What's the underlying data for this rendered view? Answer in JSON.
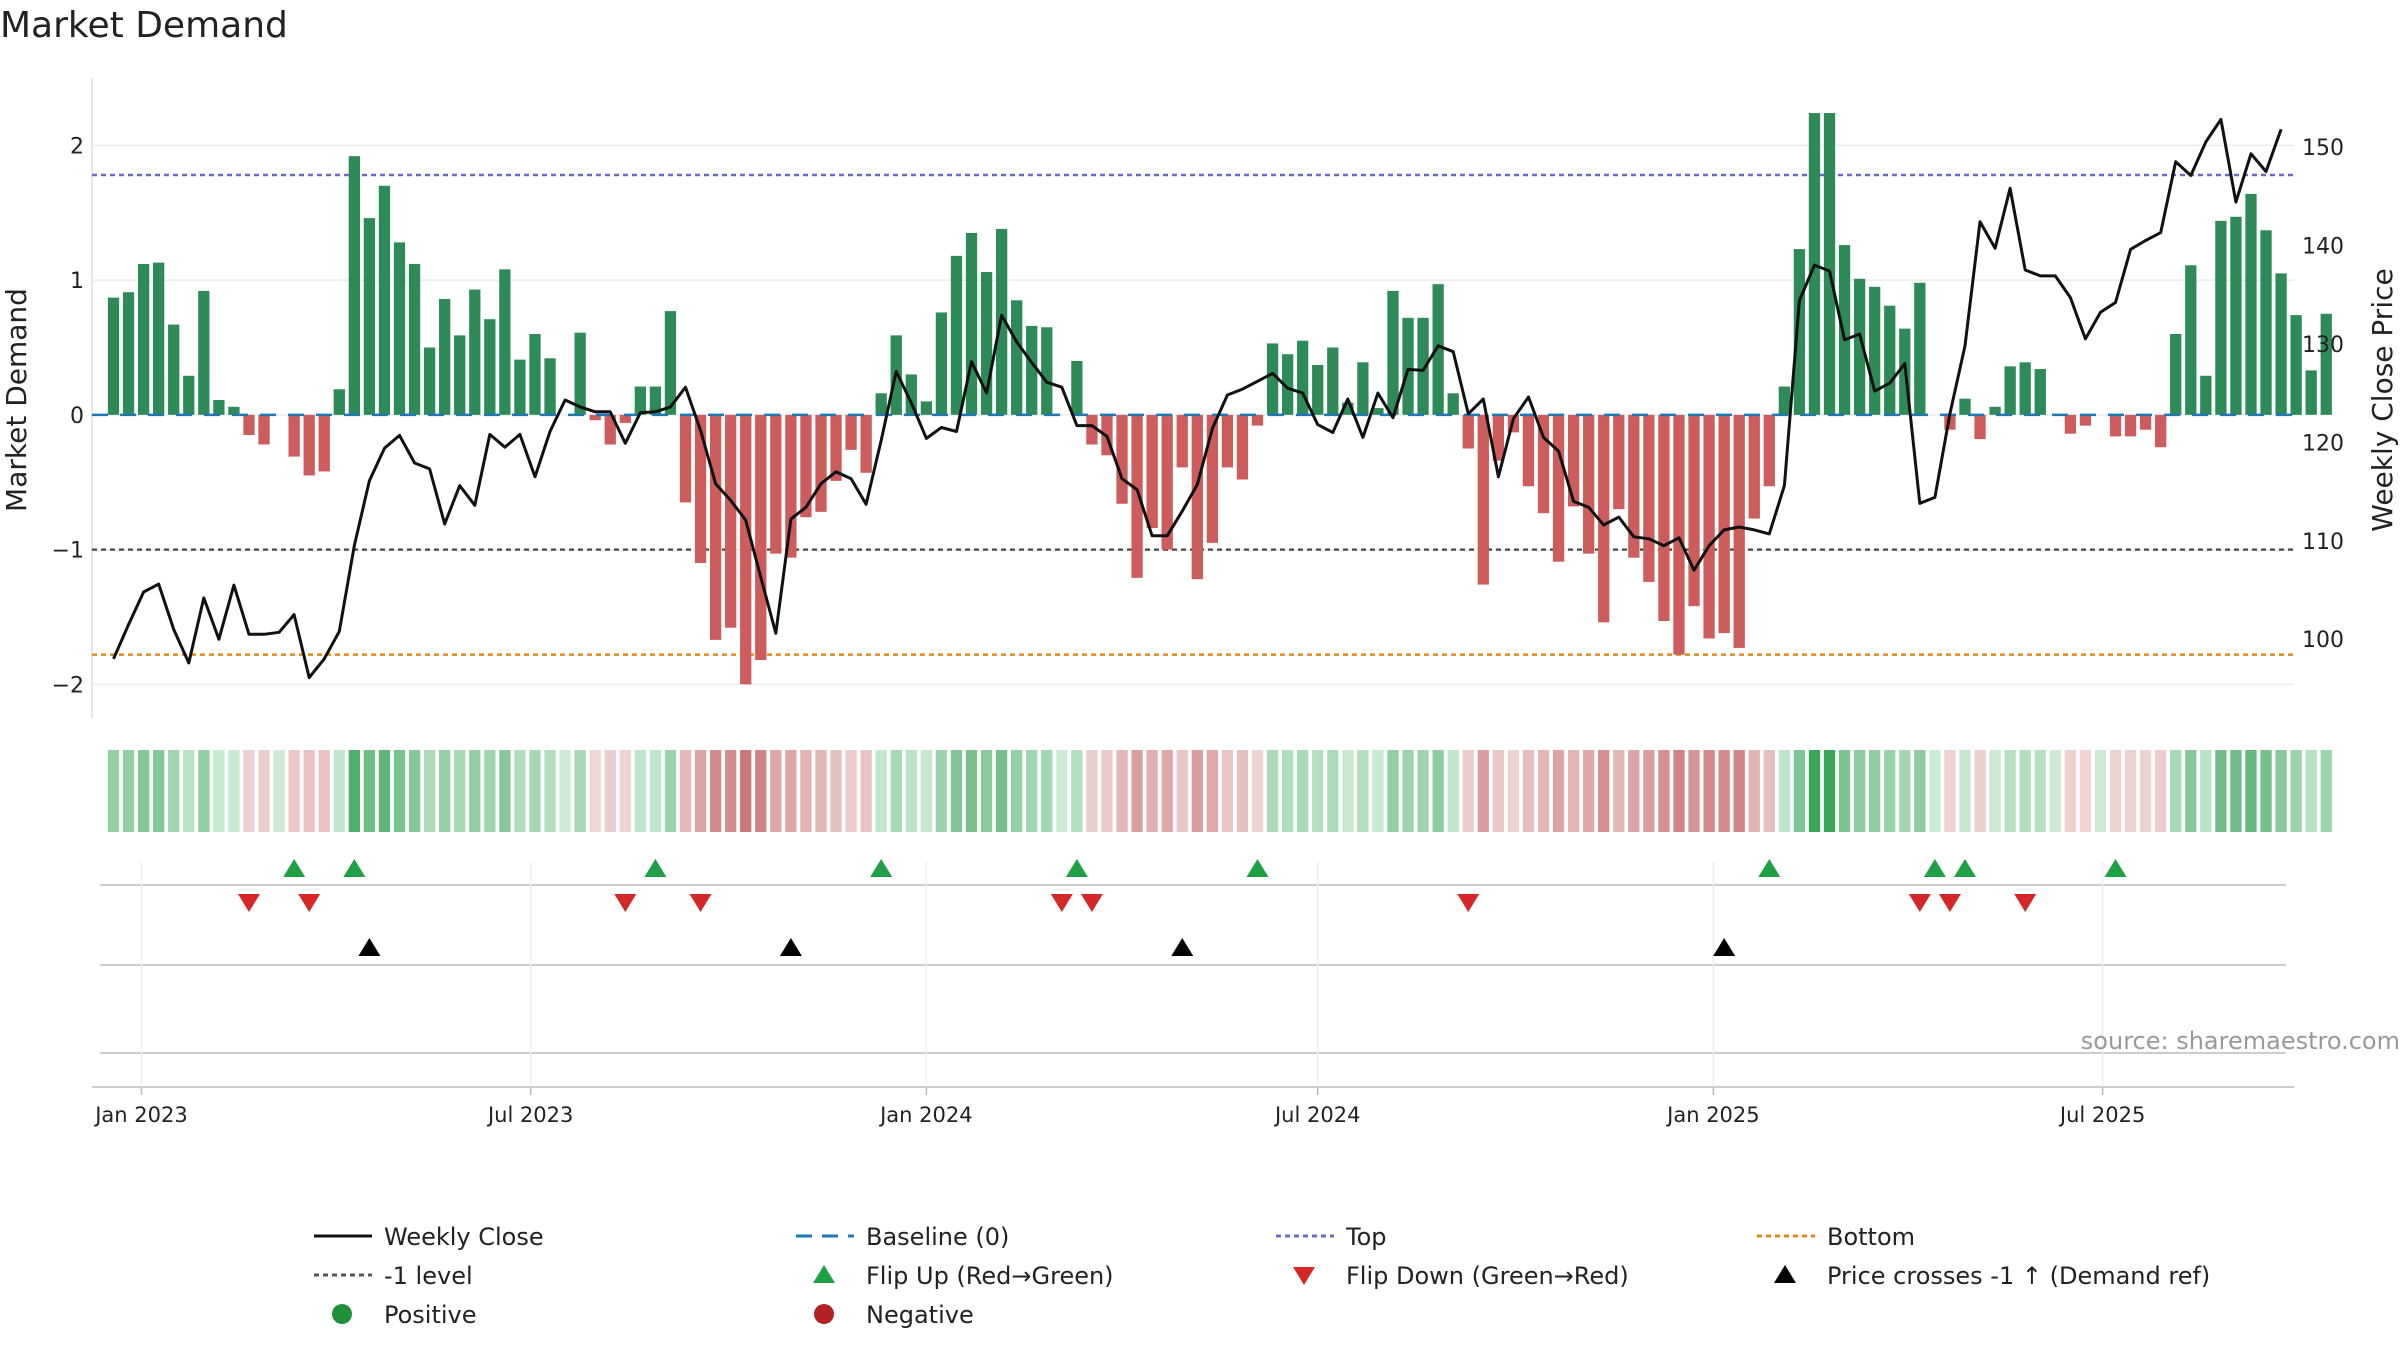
{
  "title": "Market Demand",
  "source_label": "source: sharemaestro.com",
  "chart_data": {
    "type": "bar+line",
    "title": "Market Demand",
    "ylabel": "Market Demand",
    "y2label": "Weekly Close Price",
    "ylim": [
      -2.25,
      2.5
    ],
    "y2lim": [
      92,
      157
    ],
    "yticks": [
      -2,
      -1,
      0,
      1,
      2
    ],
    "yticklabels": [
      "−2",
      "−1",
      "0",
      "1",
      "2"
    ],
    "y2ticks": [
      100,
      110,
      120,
      130,
      140,
      150
    ],
    "start_date": "2022-12-19",
    "week_days": 7,
    "xlim_dates": [
      "2022-12-09",
      "2025-09-28"
    ],
    "xticks": [
      {
        "date": "2023-01-01",
        "label": "Jan 2023"
      },
      {
        "date": "2023-07-01",
        "label": "Jul 2023"
      },
      {
        "date": "2024-01-01",
        "label": "Jan 2024"
      },
      {
        "date": "2024-07-01",
        "label": "Jul 2024"
      },
      {
        "date": "2025-01-01",
        "label": "Jan 2025"
      },
      {
        "date": "2025-07-01",
        "label": "Jul 2025"
      }
    ],
    "levels": {
      "top": 1.78,
      "bottom": -1.78,
      "minus_one": -1.0,
      "baseline": 0
    },
    "demand": [
      0.87,
      0.91,
      1.12,
      1.13,
      0.67,
      0.29,
      0.92,
      0.11,
      0.06,
      -0.15,
      -0.22,
      0,
      -0.31,
      -0.45,
      -0.42,
      0.19,
      1.92,
      1.46,
      1.7,
      1.28,
      1.12,
      0.5,
      0.86,
      0.59,
      0.93,
      0.71,
      1.08,
      0.41,
      0.6,
      0.42,
      0,
      0.61,
      -0.04,
      -0.22,
      -0.06,
      0.21,
      0.21,
      0.77,
      -0.65,
      -1.1,
      -1.67,
      -1.58,
      -2.0,
      -1.82,
      -1.03,
      -1.06,
      -0.76,
      -0.72,
      -0.49,
      -0.26,
      -0.43,
      0.16,
      0.59,
      0.3,
      0.1,
      0.76,
      1.18,
      1.35,
      1.06,
      1.38,
      0.85,
      0.66,
      0.65,
      0,
      0.4,
      -0.22,
      -0.3,
      -0.66,
      -1.21,
      -0.84,
      -1.0,
      -0.39,
      -1.22,
      -0.95,
      -0.39,
      -0.48,
      -0.08,
      0.53,
      0.45,
      0.55,
      0.37,
      0.5,
      0.09,
      0.39,
      0.05,
      0.92,
      0.72,
      0.72,
      0.97,
      0.16,
      -0.25,
      -1.26,
      -0.34,
      -0.13,
      -0.53,
      -0.73,
      -1.09,
      -0.68,
      -1.03,
      -1.54,
      -0.7,
      -1.06,
      -1.24,
      -1.53,
      -1.78,
      -1.42,
      -1.66,
      -1.62,
      -1.73,
      -0.77,
      -0.53,
      0.21,
      1.23,
      2.24,
      2.24,
      1.26,
      1.01,
      0.95,
      0.81,
      0.64,
      0.98,
      0,
      -0.11,
      0.12,
      -0.18,
      0.06,
      0.36,
      0.39,
      0.34,
      0,
      -0.14,
      -0.08,
      0,
      -0.16,
      -0.16,
      -0.11,
      -0.24,
      0.6,
      1.11,
      0.29,
      1.44,
      1.47,
      1.64,
      1.37,
      1.05,
      0.74,
      0.33,
      0.75
    ],
    "weekly_close": [
      98.0,
      101.5,
      104.8,
      105.6,
      101.0,
      97.6,
      104.2,
      100.0,
      105.5,
      100.5,
      100.5,
      100.7,
      102.5,
      96.1,
      98.0,
      100.8,
      109.5,
      116.1,
      119.4,
      120.7,
      117.9,
      117.3,
      111.7,
      115.6,
      113.6,
      120.8,
      119.5,
      120.8,
      116.5,
      121.1,
      124.3,
      123.6,
      123.1,
      123.1,
      119.9,
      123.0,
      123.1,
      123.6,
      125.6,
      121.2,
      115.8,
      114.1,
      112.1,
      106.3,
      100.6,
      112.2,
      113.4,
      115.8,
      117.0,
      116.3,
      113.7,
      120.2,
      127.2,
      124.0,
      120.4,
      121.5,
      121.1,
      128.2,
      125.0,
      132.9,
      130.2,
      128.1,
      126.1,
      125.6,
      121.7,
      121.7,
      120.6,
      116.3,
      115.2,
      110.5,
      110.5,
      113.0,
      115.7,
      121.4,
      124.8,
      125.4,
      126.2,
      127.0,
      125.5,
      125.0,
      121.8,
      121.0,
      124.4,
      120.5,
      125.0,
      122.5,
      127.4,
      127.3,
      129.8,
      129.2,
      122.9,
      124.4,
      116.5,
      122.4,
      124.6,
      120.5,
      119.1,
      114.0,
      113.4,
      111.6,
      112.4,
      110.4,
      110.2,
      109.5,
      110.3,
      107.0,
      109.5,
      111.1,
      111.4,
      111.1,
      110.7,
      115.6,
      134.4,
      138.0,
      137.4,
      130.4,
      131.0,
      125.2,
      126.0,
      128.0,
      113.8,
      114.4,
      122.9,
      129.8,
      142.4,
      139.7,
      145.8,
      137.5,
      136.9,
      136.9,
      134.7,
      130.5,
      133.2,
      134.2,
      139.6,
      140.5,
      141.3,
      148.5,
      147.1,
      150.5,
      152.8,
      144.4,
      149.3,
      147.5,
      151.8
    ],
    "heat_values": [
      0.87,
      0.91,
      1.12,
      1.13,
      0.67,
      0.29,
      0.92,
      0.11,
      0.06,
      -0.15,
      -0.22,
      0,
      -0.31,
      -0.45,
      -0.42,
      0.19,
      1.92,
      1.46,
      1.7,
      1.28,
      1.12,
      0.5,
      0.86,
      0.59,
      0.93,
      0.71,
      1.08,
      0.41,
      0.6,
      0.42,
      0,
      0.61,
      -0.04,
      -0.22,
      -0.06,
      0.21,
      0.21,
      0.77,
      -0.65,
      -1.1,
      -1.67,
      -1.58,
      -2.0,
      -1.82,
      -1.03,
      -1.06,
      -0.76,
      -0.72,
      -0.49,
      -0.26,
      -0.43,
      0.16,
      0.59,
      0.3,
      0.1,
      0.76,
      1.18,
      1.35,
      1.06,
      1.38,
      0.85,
      0.66,
      0.65,
      0,
      0.4,
      -0.22,
      -0.3,
      -0.66,
      -1.21,
      -0.84,
      -1.0,
      -0.39,
      -1.22,
      -0.95,
      -0.39,
      -0.48,
      -0.08,
      0.53,
      0.45,
      0.55,
      0.37,
      0.5,
      0.09,
      0.39,
      0.05,
      0.92,
      0.72,
      0.72,
      0.97,
      0.16,
      -0.25,
      -1.26,
      -0.34,
      -0.13,
      -0.53,
      -0.73,
      -1.09,
      -0.68,
      -1.03,
      -1.54,
      -0.7,
      -1.06,
      -1.24,
      -1.53,
      -1.78,
      -1.42,
      -1.66,
      -1.62,
      -1.73,
      -0.77,
      -0.53,
      0.21,
      1.23,
      2.24,
      2.24,
      1.26,
      1.01,
      0.95,
      0.81,
      0.64,
      0.98,
      0,
      -0.11,
      0.12,
      -0.18,
      0.06,
      0.36,
      0.39,
      0.34,
      0,
      -0.14,
      -0.08,
      0,
      -0.16,
      -0.16,
      -0.11,
      -0.24,
      0.6,
      1.11,
      0.29,
      1.44,
      1.47,
      1.64,
      1.37,
      1.05,
      0.74,
      0.33,
      0.75
    ],
    "flip_up_weeks": [
      12,
      16,
      36,
      51,
      64,
      76,
      110,
      121,
      123,
      133
    ],
    "flip_down_weeks": [
      9,
      13,
      34,
      39,
      63,
      65,
      90,
      120,
      122,
      127
    ],
    "price_cross_up_weeks": [
      17,
      45,
      71,
      107
    ],
    "colors": {
      "positive_bar": "#2e8b57",
      "negative_bar": "#cd5c5c",
      "line": "#111111",
      "top": "#6a6acd",
      "bottom": "#e08a1e",
      "minus_one": "#555555",
      "baseline": "#1f77b4",
      "flip_up": "#1fa045",
      "flip_down": "#d62728",
      "cross": "#000000"
    },
    "legend": [
      {
        "label": "Weekly Close",
        "marker": "line"
      },
      {
        "label": "Baseline (0)",
        "marker": "dash"
      },
      {
        "label": "Top",
        "marker": "dot"
      },
      {
        "label": "Bottom",
        "marker": "dot-orange"
      },
      {
        "label": "-1 level",
        "marker": "dot-gray"
      },
      {
        "label": "Flip Up (Red→Green)",
        "marker": "tri-up"
      },
      {
        "label": "Flip Down (Green→Red)",
        "marker": "tri-down"
      },
      {
        "label": "Price crosses -1 ↑ (Demand ref)",
        "marker": "tri-black"
      },
      {
        "label": "Positive",
        "marker": "circle-green"
      },
      {
        "label": "Negative",
        "marker": "circle-red"
      }
    ]
  }
}
